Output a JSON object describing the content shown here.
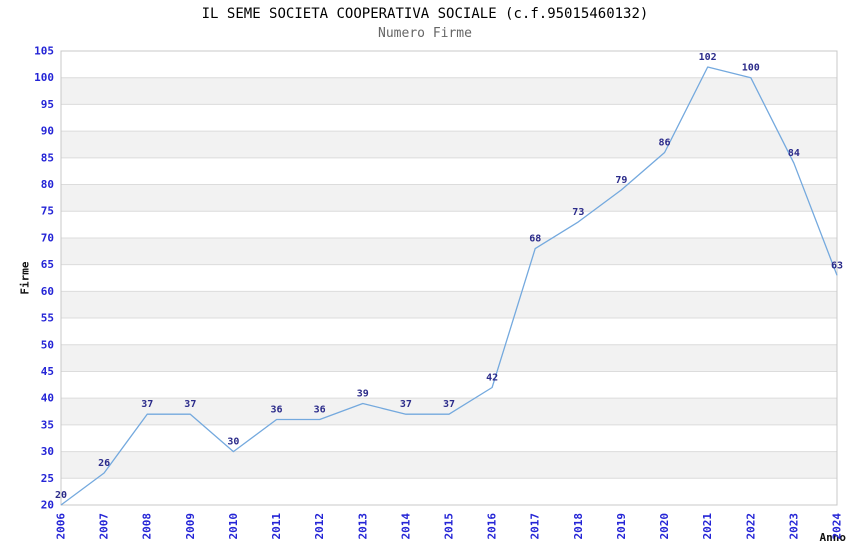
{
  "chart_data": {
    "type": "line",
    "title": "IL SEME SOCIETA COOPERATIVA SOCIALE (c.f.95015460132)",
    "subtitle": "Numero Firme",
    "xlabel": "Anno",
    "ylabel": "Firme",
    "x": [
      2006,
      2007,
      2008,
      2009,
      2010,
      2011,
      2012,
      2013,
      2014,
      2015,
      2016,
      2017,
      2018,
      2019,
      2020,
      2021,
      2022,
      2023,
      2024
    ],
    "values": [
      20,
      26,
      37,
      37,
      30,
      36,
      36,
      39,
      37,
      37,
      42,
      68,
      73,
      79,
      86,
      102,
      100,
      84,
      63
    ],
    "ylim": [
      20,
      105
    ],
    "ytick_step": 5,
    "grid": "horizontal-bands-alternating",
    "legend": "none",
    "colors": {
      "line": "#74a9de",
      "tick_label": "#2424d6",
      "data_label": "#2b2b8a",
      "band": "#f2f2f2",
      "gridline": "#dcdcdc",
      "plot_border": "#c8c8c8",
      "title": "#000000",
      "subtitle": "#666666",
      "axis_title": "#111111"
    }
  }
}
